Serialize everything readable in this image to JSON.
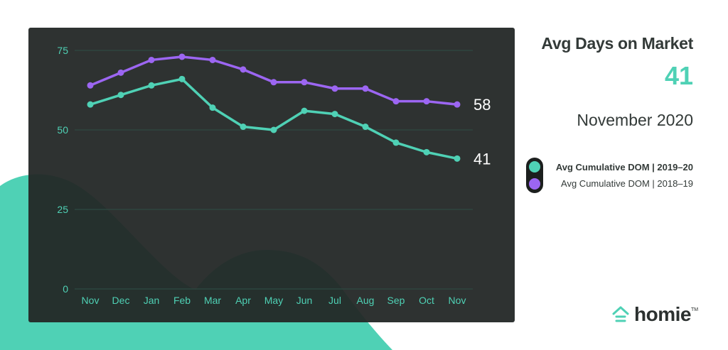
{
  "header": {
    "title": "Avg Days on Market",
    "value": "41",
    "period": "November 2020"
  },
  "legend": [
    {
      "label": "Avg Cumulative DOM  |  2019–20",
      "color": "#4fd1b5",
      "bold": true
    },
    {
      "label": "Avg Cumulative DOM  |  2018–19",
      "color": "#9c66f2",
      "bold": false
    }
  ],
  "brand": {
    "name": "homie",
    "trademark": "TM"
  },
  "colors": {
    "teal": "#4fd1b5",
    "purple": "#9c66f2",
    "panel": "#232726"
  },
  "chart_data": {
    "type": "line",
    "categories": [
      "Nov",
      "Dec",
      "Jan",
      "Feb",
      "Mar",
      "Apr",
      "May",
      "Jun",
      "Jul",
      "Aug",
      "Sep",
      "Oct",
      "Nov"
    ],
    "yticks": [
      0,
      25,
      50,
      75
    ],
    "ylim": [
      0,
      75
    ],
    "grid": true,
    "series": [
      {
        "name": "Avg Cumulative DOM  |  2019–20",
        "color": "#4fd1b5",
        "values": [
          58,
          61,
          64,
          66,
          57,
          51,
          50,
          56,
          55,
          51,
          46,
          43,
          41
        ],
        "end_label": "41"
      },
      {
        "name": "Avg Cumulative DOM  |  2018–19",
        "color": "#9c66f2",
        "values": [
          64,
          68,
          72,
          73,
          72,
          69,
          65,
          65,
          63,
          63,
          59,
          59,
          58
        ],
        "end_label": "58"
      }
    ]
  }
}
